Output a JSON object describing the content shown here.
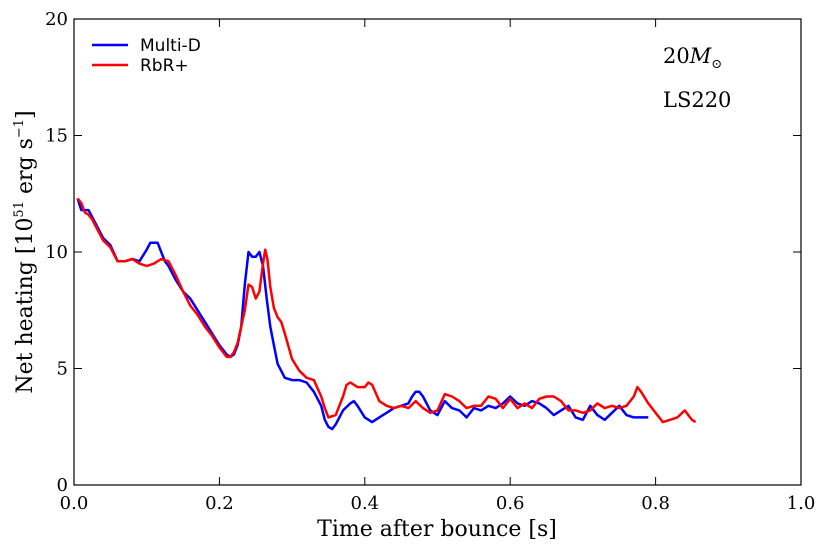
{
  "chart_data": {
    "type": "line",
    "xlabel": "Time after bounce [s]",
    "ylabel_prefix": "Net heating [10",
    "ylabel_exp1": "51",
    "ylabel_mid": " erg s",
    "ylabel_exp2": "−1",
    "ylabel_suffix": "]",
    "xlim": [
      0.0,
      1.0
    ],
    "ylim": [
      0,
      20
    ],
    "xticks": [
      0.0,
      0.2,
      0.4,
      0.6,
      0.8,
      1.0
    ],
    "xtick_labels": [
      "0.0",
      "0.2",
      "0.4",
      "0.6",
      "0.8",
      "1.0"
    ],
    "yticks": [
      0,
      5,
      10,
      15,
      20
    ],
    "ytick_labels": [
      "0",
      "5",
      "10",
      "15",
      "20"
    ],
    "legend_position": "top-left",
    "annotations": {
      "mass_value": "20",
      "mass_symbol": "M",
      "mass_subscript": "⊙",
      "eos": "LS220"
    },
    "series": [
      {
        "name": "Multi-D",
        "color": "#0000ff",
        "x": [
          0.005,
          0.01,
          0.015,
          0.02,
          0.025,
          0.03,
          0.04,
          0.05,
          0.06,
          0.07,
          0.08,
          0.09,
          0.1,
          0.105,
          0.11,
          0.115,
          0.12,
          0.125,
          0.13,
          0.14,
          0.15,
          0.16,
          0.17,
          0.18,
          0.19,
          0.2,
          0.21,
          0.215,
          0.22,
          0.225,
          0.23,
          0.235,
          0.24,
          0.245,
          0.25,
          0.255,
          0.26,
          0.265,
          0.27,
          0.275,
          0.28,
          0.29,
          0.3,
          0.31,
          0.32,
          0.33,
          0.34,
          0.345,
          0.35,
          0.355,
          0.36,
          0.37,
          0.38,
          0.385,
          0.39,
          0.4,
          0.41,
          0.42,
          0.43,
          0.44,
          0.45,
          0.46,
          0.465,
          0.47,
          0.475,
          0.48,
          0.49,
          0.5,
          0.51,
          0.52,
          0.53,
          0.54,
          0.55,
          0.56,
          0.57,
          0.58,
          0.59,
          0.6,
          0.61,
          0.62,
          0.63,
          0.64,
          0.65,
          0.66,
          0.67,
          0.68,
          0.69,
          0.7,
          0.71,
          0.72,
          0.73,
          0.74,
          0.75,
          0.76,
          0.77,
          0.78,
          0.79
        ],
        "y": [
          12.3,
          11.8,
          11.8,
          11.8,
          11.5,
          11.2,
          10.6,
          10.3,
          9.6,
          9.6,
          9.7,
          9.6,
          10.1,
          10.4,
          10.4,
          10.4,
          10.0,
          9.6,
          9.4,
          8.8,
          8.3,
          8.0,
          7.5,
          7.0,
          6.5,
          6.0,
          5.6,
          5.5,
          5.6,
          6.0,
          6.8,
          8.6,
          10.0,
          9.8,
          9.8,
          10.0,
          9.4,
          8.0,
          6.8,
          6.0,
          5.2,
          4.6,
          4.5,
          4.5,
          4.4,
          4.0,
          3.4,
          2.8,
          2.5,
          2.4,
          2.6,
          3.2,
          3.5,
          3.6,
          3.4,
          2.9,
          2.7,
          2.9,
          3.1,
          3.3,
          3.4,
          3.5,
          3.8,
          4.0,
          4.0,
          3.8,
          3.2,
          3.0,
          3.6,
          3.3,
          3.2,
          2.9,
          3.3,
          3.2,
          3.4,
          3.3,
          3.5,
          3.8,
          3.5,
          3.4,
          3.6,
          3.5,
          3.3,
          3.0,
          3.2,
          3.4,
          2.9,
          2.8,
          3.4,
          3.0,
          2.8,
          3.1,
          3.4,
          3.0,
          2.9,
          2.9,
          2.9
        ]
      },
      {
        "name": "RbR+",
        "color": "#ff0000",
        "x": [
          0.005,
          0.01,
          0.015,
          0.02,
          0.025,
          0.03,
          0.04,
          0.05,
          0.06,
          0.07,
          0.08,
          0.09,
          0.1,
          0.11,
          0.12,
          0.13,
          0.14,
          0.15,
          0.16,
          0.17,
          0.18,
          0.19,
          0.2,
          0.21,
          0.215,
          0.22,
          0.225,
          0.23,
          0.235,
          0.24,
          0.245,
          0.25,
          0.255,
          0.26,
          0.263,
          0.266,
          0.27,
          0.275,
          0.28,
          0.285,
          0.29,
          0.3,
          0.31,
          0.32,
          0.33,
          0.34,
          0.345,
          0.35,
          0.36,
          0.37,
          0.375,
          0.38,
          0.39,
          0.4,
          0.405,
          0.41,
          0.42,
          0.43,
          0.44,
          0.45,
          0.46,
          0.47,
          0.48,
          0.49,
          0.5,
          0.51,
          0.52,
          0.53,
          0.54,
          0.55,
          0.56,
          0.57,
          0.58,
          0.59,
          0.6,
          0.61,
          0.62,
          0.63,
          0.64,
          0.65,
          0.66,
          0.67,
          0.68,
          0.69,
          0.7,
          0.71,
          0.72,
          0.73,
          0.74,
          0.75,
          0.76,
          0.77,
          0.775,
          0.78,
          0.79,
          0.8,
          0.81,
          0.82,
          0.83,
          0.84,
          0.85,
          0.855
        ],
        "y": [
          12.3,
          12.1,
          11.7,
          11.6,
          11.4,
          11.1,
          10.5,
          10.2,
          9.6,
          9.6,
          9.7,
          9.5,
          9.4,
          9.5,
          9.7,
          9.6,
          9.0,
          8.3,
          7.7,
          7.3,
          6.8,
          6.4,
          5.9,
          5.5,
          5.5,
          5.7,
          6.1,
          6.8,
          7.5,
          8.6,
          8.5,
          8.0,
          8.3,
          9.5,
          10.1,
          9.7,
          8.5,
          7.6,
          7.2,
          7.0,
          6.5,
          5.4,
          4.9,
          4.6,
          4.5,
          3.8,
          3.3,
          2.9,
          3.0,
          3.8,
          4.3,
          4.4,
          4.2,
          4.2,
          4.4,
          4.3,
          3.6,
          3.4,
          3.3,
          3.4,
          3.3,
          3.6,
          3.3,
          3.1,
          3.2,
          3.9,
          3.8,
          3.6,
          3.3,
          3.4,
          3.4,
          3.8,
          3.7,
          3.3,
          3.7,
          3.3,
          3.5,
          3.3,
          3.7,
          3.8,
          3.8,
          3.6,
          3.2,
          3.2,
          3.1,
          3.2,
          3.5,
          3.3,
          3.4,
          3.3,
          3.4,
          3.8,
          4.2,
          4.0,
          3.5,
          3.1,
          2.7,
          2.8,
          2.9,
          3.2,
          2.8,
          2.7
        ]
      }
    ]
  }
}
